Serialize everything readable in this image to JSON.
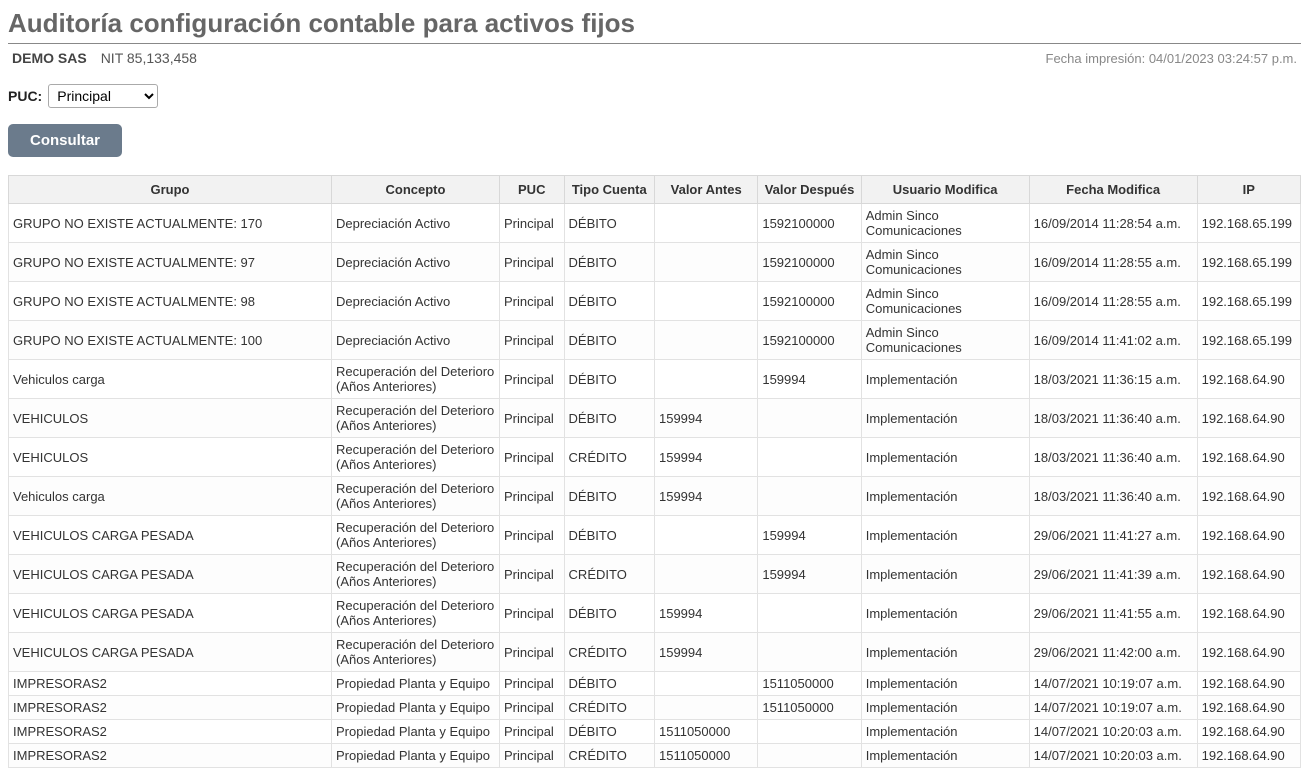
{
  "header": {
    "title": "Auditoría configuración contable para activos fijos",
    "company": "DEMO SAS",
    "nit": "NIT 85,133,458",
    "printLabel": "Fecha impresión: 04/01/2023 03:24:57 p.m."
  },
  "filters": {
    "pucLabel": "PUC:",
    "pucSelected": "Principal",
    "pucOptions": [
      "Principal"
    ],
    "consultLabel": "Consultar"
  },
  "table": {
    "columns": [
      "Grupo",
      "Concepto",
      "PUC",
      "Tipo Cuenta",
      "Valor Antes",
      "Valor Después",
      "Usuario Modifica",
      "Fecha Modifica",
      "IP"
    ],
    "colClasses": [
      "col-grupo",
      "col-concepto",
      "col-puc",
      "col-tipo",
      "col-antes",
      "col-despues",
      "col-usuario",
      "col-fecha",
      "col-ip"
    ],
    "rows": [
      [
        "GRUPO NO EXISTE ACTUALMENTE: 170",
        "Depreciación Activo",
        "Principal",
        "DÉBITO",
        "",
        "1592100000",
        "Admin Sinco Comunicaciones",
        "16/09/2014 11:28:54 a.m.",
        "192.168.65.199"
      ],
      [
        "GRUPO NO EXISTE ACTUALMENTE: 97",
        "Depreciación Activo",
        "Principal",
        "DÉBITO",
        "",
        "1592100000",
        "Admin Sinco Comunicaciones",
        "16/09/2014 11:28:55 a.m.",
        "192.168.65.199"
      ],
      [
        "GRUPO NO EXISTE ACTUALMENTE: 98",
        "Depreciación Activo",
        "Principal",
        "DÉBITO",
        "",
        "1592100000",
        "Admin Sinco Comunicaciones",
        "16/09/2014 11:28:55 a.m.",
        "192.168.65.199"
      ],
      [
        "GRUPO NO EXISTE ACTUALMENTE: 100",
        "Depreciación Activo",
        "Principal",
        "DÉBITO",
        "",
        "1592100000",
        "Admin Sinco Comunicaciones",
        "16/09/2014 11:41:02 a.m.",
        "192.168.65.199"
      ],
      [
        "Vehiculos carga",
        "Recuperación del Deterioro (Años Anteriores)",
        "Principal",
        "DÉBITO",
        "",
        "159994",
        "Implementación",
        "18/03/2021 11:36:15 a.m.",
        "192.168.64.90"
      ],
      [
        "VEHICULOS",
        "Recuperación del Deterioro (Años Anteriores)",
        "Principal",
        "DÉBITO",
        "159994",
        "",
        "Implementación",
        "18/03/2021 11:36:40 a.m.",
        "192.168.64.90"
      ],
      [
        "VEHICULOS",
        "Recuperación del Deterioro (Años Anteriores)",
        "Principal",
        "CRÉDITO",
        "159994",
        "",
        "Implementación",
        "18/03/2021 11:36:40 a.m.",
        "192.168.64.90"
      ],
      [
        "Vehiculos carga",
        "Recuperación del Deterioro (Años Anteriores)",
        "Principal",
        "DÉBITO",
        "159994",
        "",
        "Implementación",
        "18/03/2021 11:36:40 a.m.",
        "192.168.64.90"
      ],
      [
        "VEHICULOS CARGA PESADA",
        "Recuperación del Deterioro (Años Anteriores)",
        "Principal",
        "DÉBITO",
        "",
        "159994",
        "Implementación",
        "29/06/2021 11:41:27 a.m.",
        "192.168.64.90"
      ],
      [
        "VEHICULOS CARGA PESADA",
        "Recuperación del Deterioro (Años Anteriores)",
        "Principal",
        "CRÉDITO",
        "",
        "159994",
        "Implementación",
        "29/06/2021 11:41:39 a.m.",
        "192.168.64.90"
      ],
      [
        "VEHICULOS CARGA PESADA",
        "Recuperación del Deterioro (Años Anteriores)",
        "Principal",
        "DÉBITO",
        "159994",
        "",
        "Implementación",
        "29/06/2021 11:41:55 a.m.",
        "192.168.64.90"
      ],
      [
        "VEHICULOS CARGA PESADA",
        "Recuperación del Deterioro (Años Anteriores)",
        "Principal",
        "CRÉDITO",
        "159994",
        "",
        "Implementación",
        "29/06/2021 11:42:00 a.m.",
        "192.168.64.90"
      ],
      [
        "IMPRESORAS2",
        "Propiedad Planta y Equipo",
        "Principal",
        "DÉBITO",
        "",
        "1511050000",
        "Implementación",
        "14/07/2021 10:19:07 a.m.",
        "192.168.64.90"
      ],
      [
        "IMPRESORAS2",
        "Propiedad Planta y Equipo",
        "Principal",
        "CRÉDITO",
        "",
        "1511050000",
        "Implementación",
        "14/07/2021 10:19:07 a.m.",
        "192.168.64.90"
      ],
      [
        "IMPRESORAS2",
        "Propiedad Planta y Equipo",
        "Principal",
        "DÉBITO",
        "1511050000",
        "",
        "Implementación",
        "14/07/2021 10:20:03 a.m.",
        "192.168.64.90"
      ],
      [
        "IMPRESORAS2",
        "Propiedad Planta y Equipo",
        "Principal",
        "CRÉDITO",
        "1511050000",
        "",
        "Implementación",
        "14/07/2021 10:20:03 a.m.",
        "192.168.64.90"
      ]
    ]
  }
}
